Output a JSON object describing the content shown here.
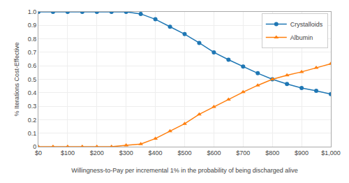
{
  "chart_data": {
    "type": "line",
    "x": [
      0,
      50,
      100,
      150,
      200,
      250,
      300,
      350,
      400,
      450,
      500,
      550,
      600,
      650,
      700,
      750,
      800,
      850,
      900,
      950,
      1000
    ],
    "series": [
      {
        "name": "Crystalloids",
        "marker": "circle",
        "values": [
          1.0,
          1.0,
          1.0,
          1.0,
          1.0,
          1.0,
          1.0,
          0.985,
          0.945,
          0.89,
          0.835,
          0.77,
          0.7,
          0.645,
          0.595,
          0.545,
          0.5,
          0.465,
          0.435,
          0.415,
          0.39
        ]
      },
      {
        "name": "Albumin",
        "marker": "triangle-up",
        "values": [
          0.0,
          0.0,
          0.0,
          0.0,
          0.0,
          0.0,
          0.01,
          0.02,
          0.06,
          0.115,
          0.17,
          0.24,
          0.295,
          0.35,
          0.405,
          0.455,
          0.5,
          0.53,
          0.555,
          0.585,
          0.615
        ]
      }
    ],
    "xlabel": "Willingness-to-Pay per incremental 1% in the probability of being discharged alive",
    "ylabel": "% Iterations Cost-Effective",
    "xlim": [
      0,
      1000
    ],
    "ylim": [
      0,
      1.0
    ],
    "xticks": [
      {
        "value": 0,
        "label": "$0"
      },
      {
        "value": 100,
        "label": "$100"
      },
      {
        "value": 200,
        "label": "$200"
      },
      {
        "value": 300,
        "label": "$300"
      },
      {
        "value": 400,
        "label": "$400"
      },
      {
        "value": 500,
        "label": "$500"
      },
      {
        "value": 600,
        "label": "$600"
      },
      {
        "value": 700,
        "label": "$700"
      },
      {
        "value": 800,
        "label": "$800"
      },
      {
        "value": 900,
        "label": "$900"
      },
      {
        "value": 1000,
        "label": "$1,000"
      }
    ],
    "yticks": [
      0,
      0.1,
      0.2,
      0.3,
      0.4,
      0.5,
      0.6,
      0.7,
      0.8,
      0.9,
      {
        "value": 1.0,
        "label": "1.0"
      }
    ],
    "grid": true,
    "legend": "upper right"
  }
}
